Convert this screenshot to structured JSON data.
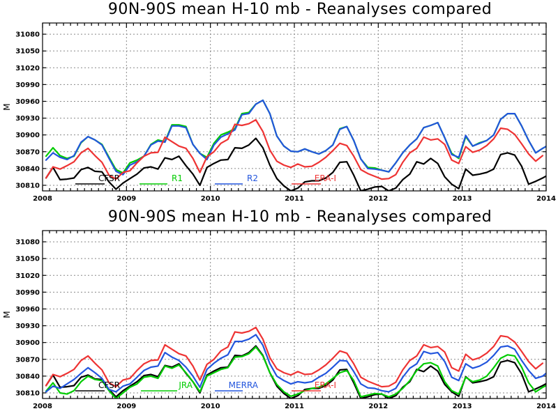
{
  "chart_data": [
    {
      "type": "line",
      "title": "90N-90S mean H-10 mb - Reanalyses compared",
      "ylabel": "M",
      "xlabel": "",
      "xlim": [
        2008,
        2014
      ],
      "ylim": [
        30800,
        31100
      ],
      "x_ticks": [
        2008,
        2009,
        2010,
        2011,
        2012,
        2013,
        2014
      ],
      "x_tick_labels": [
        "2008",
        "2009",
        "2010",
        "2011",
        "2012",
        "2013",
        "2014"
      ],
      "y_ticks": [
        30810,
        30840,
        30870,
        30900,
        30930,
        30960,
        30990,
        31020,
        31050,
        31080
      ],
      "y_tick_labels": [
        "30810",
        "30840",
        "30870",
        "30900",
        "30930",
        "30960",
        "30990",
        "31020",
        "31050",
        "31080"
      ],
      "grid": true,
      "legend": "bottom",
      "series": [
        {
          "name": "CFSR",
          "color": "#000000",
          "x_start": 2008,
          "values": [
            30823,
            30842,
            30820,
            30821,
            30823,
            30838,
            30842,
            30835,
            30834,
            30816,
            30803,
            30814,
            30822,
            30830,
            30841,
            30843,
            30839,
            30859,
            30856,
            30862,
            30845,
            30830,
            30810,
            30842,
            30849,
            30855,
            30856,
            30877,
            30876,
            30882,
            30894,
            30877,
            30846,
            30822,
            30809,
            30800,
            30805,
            30816,
            30818,
            30818,
            30823,
            30833,
            30851,
            30852,
            30828,
            30800,
            30803,
            30807,
            30808,
            30800,
            30805,
            30820,
            30830,
            30852,
            30848,
            30858,
            30849,
            30825,
            30812,
            30804,
            30839,
            30828,
            30830,
            30833,
            30839,
            30865,
            30868,
            30864,
            30844,
            30812,
            30817,
            30823,
            30830
          ]
        },
        {
          "name": "R1",
          "color": "#00cc00",
          "x_start": 2008,
          "values": [
            30862,
            30877,
            30863,
            30858,
            30862,
            30886,
            30897,
            30891,
            30883,
            30860,
            30838,
            30832,
            30850,
            30855,
            30862,
            30883,
            30891,
            30888,
            30918,
            30918,
            30915,
            30883,
            30867,
            30860,
            30885,
            30900,
            30905,
            30911,
            30938,
            30940,
            30955,
            30962,
            30938,
            30898,
            30880,
            30871,
            30870,
            30875,
            30870,
            30866,
            30872,
            30882,
            30911,
            30915,
            30890,
            30857,
            30842,
            30841,
            30837,
            30834,
            30850,
            30868,
            30882,
            30893,
            30913,
            30917,
            30922,
            30895,
            30867,
            30858,
            30897,
            30880,
            30886,
            30890,
            30900,
            30928,
            30938,
            30938,
            30916,
            30890,
            30868,
            30876,
            30883,
            30888
          ]
        },
        {
          "name": "R2",
          "color": "#2255dd",
          "x_start": 2008,
          "values": [
            30855,
            30868,
            30860,
            30856,
            30863,
            30887,
            30897,
            30891,
            30882,
            30858,
            30835,
            30829,
            30846,
            30852,
            30862,
            30882,
            30889,
            30887,
            30916,
            30916,
            30913,
            30883,
            30867,
            30856,
            30882,
            30896,
            30902,
            30909,
            30936,
            30938,
            30955,
            30962,
            30938,
            30898,
            30880,
            30871,
            30870,
            30875,
            30870,
            30866,
            30872,
            30882,
            30910,
            30915,
            30890,
            30857,
            30840,
            30839,
            30837,
            30834,
            30850,
            30868,
            30882,
            30893,
            30913,
            30917,
            30922,
            30895,
            30865,
            30860,
            30899,
            30880,
            30885,
            30890,
            30900,
            30928,
            30938,
            30938,
            30916,
            30890,
            30868,
            30876,
            30883,
            30888
          ]
        },
        {
          "name": "ERA-I",
          "color": "#ee3333",
          "x_start": 2008,
          "values": [
            30823,
            30843,
            30839,
            30845,
            30852,
            30868,
            30876,
            30863,
            30851,
            30828,
            30821,
            30833,
            30836,
            30850,
            30862,
            30868,
            30869,
            30896,
            30888,
            30880,
            30876,
            30858,
            30833,
            30861,
            30870,
            30885,
            30892,
            30919,
            30917,
            30920,
            30927,
            30906,
            30873,
            30853,
            30846,
            30842,
            30848,
            30843,
            30844,
            30851,
            30860,
            30872,
            30885,
            30881,
            30862,
            30838,
            30831,
            30826,
            30821,
            30822,
            30829,
            30851,
            30868,
            30876,
            30896,
            30891,
            30893,
            30883,
            30855,
            30849,
            30879,
            30869,
            30873,
            30881,
            30893,
            30912,
            30910,
            30901,
            30884,
            30866,
            30853,
            30863
          ]
        }
      ]
    },
    {
      "type": "line",
      "title": "90N-90S mean H-10 mb - Reanalyses compared",
      "ylabel": "M",
      "xlabel": "",
      "xlim": [
        2008,
        2014
      ],
      "ylim": [
        30800,
        31100
      ],
      "x_ticks": [
        2008,
        2009,
        2010,
        2011,
        2012,
        2013,
        2014
      ],
      "x_tick_labels": [
        "2008",
        "2009",
        "2010",
        "2011",
        "2012",
        "2013",
        "2014"
      ],
      "y_ticks": [
        30810,
        30840,
        30870,
        30900,
        30930,
        30960,
        30990,
        31020,
        31050,
        31080
      ],
      "y_tick_labels": [
        "30810",
        "30840",
        "30870",
        "30900",
        "30930",
        "30960",
        "30990",
        "31020",
        "31050",
        "31080"
      ],
      "grid": true,
      "legend": "bottom",
      "series": [
        {
          "name": "CFSR",
          "color": "#000000",
          "x_start": 2008,
          "values": [
            30823,
            30842,
            30820,
            30821,
            30823,
            30838,
            30842,
            30835,
            30834,
            30816,
            30803,
            30814,
            30822,
            30830,
            30841,
            30843,
            30839,
            30859,
            30856,
            30862,
            30845,
            30830,
            30810,
            30842,
            30849,
            30855,
            30856,
            30877,
            30876,
            30882,
            30894,
            30877,
            30846,
            30822,
            30809,
            30800,
            30805,
            30816,
            30818,
            30818,
            30823,
            30833,
            30851,
            30852,
            30828,
            30800,
            30803,
            30807,
            30808,
            30800,
            30805,
            30820,
            30830,
            30852,
            30848,
            30858,
            30849,
            30825,
            30812,
            30804,
            30839,
            30828,
            30830,
            30833,
            30839,
            30865,
            30868,
            30864,
            30844,
            30812,
            30817,
            30823,
            30830
          ]
        },
        {
          "name": "JRA",
          "color": "#00cc00",
          "x_start": 2008,
          "values": [
            30813,
            30828,
            30810,
            30808,
            30814,
            30830,
            30840,
            30834,
            30832,
            30814,
            30800,
            30810,
            30820,
            30826,
            30838,
            30840,
            30836,
            30858,
            30854,
            30860,
            30846,
            30830,
            30812,
            30840,
            30846,
            30852,
            30855,
            30874,
            30875,
            30880,
            30892,
            30876,
            30846,
            30825,
            30812,
            30804,
            30808,
            30814,
            30818,
            30820,
            30826,
            30836,
            30846,
            30850,
            30832,
            30803,
            30806,
            30809,
            30808,
            30803,
            30808,
            30818,
            30832,
            30850,
            30862,
            30864,
            30858,
            30830,
            30814,
            30808,
            30838,
            30830,
            30833,
            30840,
            30855,
            30872,
            30878,
            30876,
            30856,
            30828,
            30812,
            30820,
            30826,
            30830
          ]
        },
        {
          "name": "MERRA",
          "color": "#2255dd",
          "x_start": 2008,
          "values": [
            30812,
            30822,
            30818,
            30826,
            30834,
            30845,
            30855,
            30846,
            30836,
            30816,
            30812,
            30822,
            30826,
            30838,
            30850,
            30856,
            30858,
            30882,
            30874,
            30868,
            30856,
            30840,
            30820,
            30852,
            30863,
            30872,
            30878,
            30902,
            30902,
            30906,
            30914,
            30895,
            30862,
            30840,
            30832,
            30826,
            30830,
            30828,
            30830,
            30838,
            30845,
            30856,
            30868,
            30867,
            30848,
            30826,
            30819,
            30818,
            30814,
            30812,
            30818,
            30838,
            30854,
            30862,
            30884,
            30880,
            30882,
            30866,
            30838,
            30832,
            30862,
            30854,
            30858,
            30865,
            30877,
            30892,
            30894,
            30888,
            30868,
            30850,
            30836,
            30840,
            30850
          ]
        },
        {
          "name": "ERA-I",
          "color": "#ee3333",
          "x_start": 2008,
          "values": [
            30823,
            30843,
            30839,
            30845,
            30852,
            30868,
            30876,
            30863,
            30851,
            30828,
            30821,
            30833,
            30836,
            30850,
            30862,
            30868,
            30869,
            30896,
            30888,
            30880,
            30876,
            30858,
            30833,
            30861,
            30870,
            30885,
            30892,
            30919,
            30917,
            30920,
            30927,
            30906,
            30873,
            30853,
            30846,
            30842,
            30848,
            30843,
            30844,
            30851,
            30860,
            30872,
            30885,
            30881,
            30862,
            30838,
            30831,
            30826,
            30821,
            30822,
            30829,
            30851,
            30868,
            30876,
            30896,
            30891,
            30893,
            30883,
            30855,
            30849,
            30879,
            30869,
            30873,
            30881,
            30893,
            30912,
            30910,
            30901,
            30884,
            30866,
            30853,
            30863
          ]
        }
      ]
    }
  ]
}
